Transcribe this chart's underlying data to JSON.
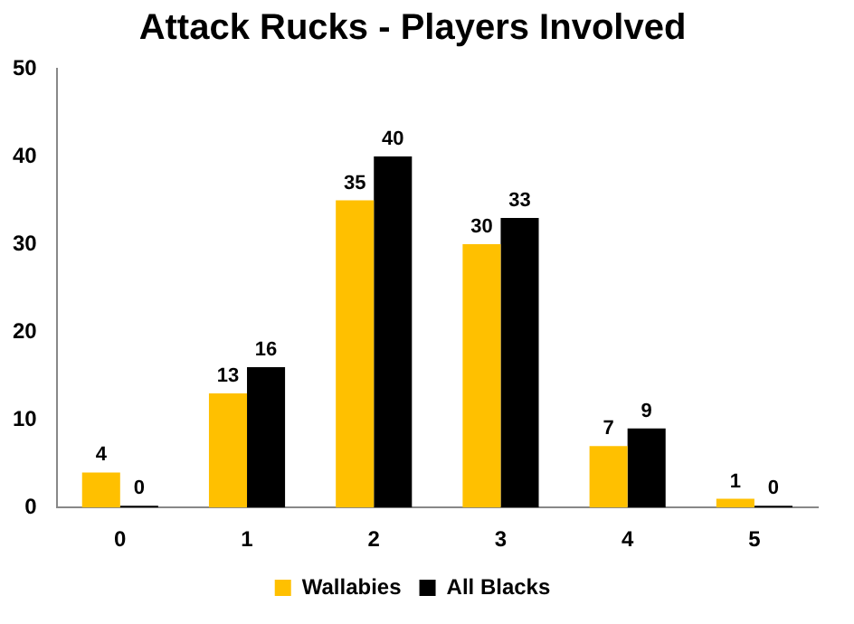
{
  "chart_data": {
    "type": "bar",
    "title": "Attack Rucks - Players Involved",
    "categories": [
      "0",
      "1",
      "2",
      "3",
      "4",
      "5"
    ],
    "series": [
      {
        "name": "Wallabies",
        "color": "#ffc000",
        "values": [
          4,
          13,
          35,
          30,
          7,
          1
        ]
      },
      {
        "name": "All Blacks",
        "color": "#000000",
        "values": [
          0,
          16,
          40,
          33,
          9,
          0
        ]
      }
    ],
    "ylim": [
      0,
      50
    ],
    "yticks": [
      0,
      10,
      20,
      30,
      40,
      50
    ],
    "grid": false,
    "legend": "bottom",
    "data_labels": true
  }
}
